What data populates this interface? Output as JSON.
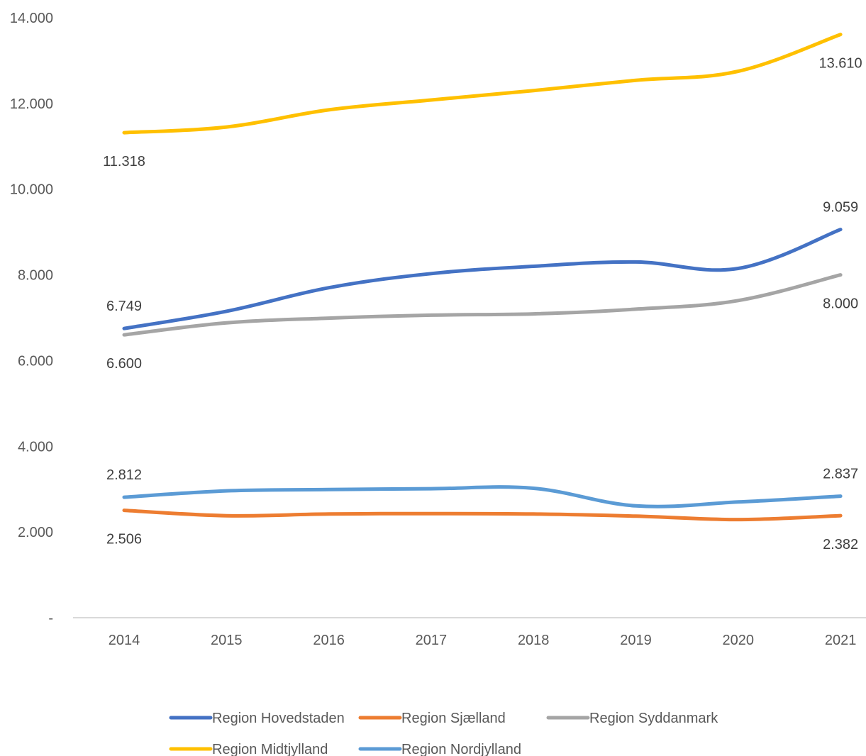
{
  "chart_data": {
    "type": "line",
    "title": "",
    "xlabel": "",
    "ylabel": "",
    "categories": [
      "2014",
      "2015",
      "2016",
      "2017",
      "2018",
      "2019",
      "2020",
      "2021"
    ],
    "ylim": [
      0,
      14000
    ],
    "y_ticks": [
      0,
      2000,
      4000,
      6000,
      8000,
      10000,
      12000,
      14000
    ],
    "y_tick_labels": [
      "-",
      "2.000",
      "4.000",
      "6.000",
      "8.000",
      "10.000",
      "12.000",
      "14.000"
    ],
    "grid": false,
    "smooth": true,
    "legend_position": "bottom",
    "series": [
      {
        "name": "Region Hovedstaden",
        "color": "#4472C4",
        "values": [
          6749,
          7150,
          7700,
          8030,
          8200,
          8300,
          8150,
          9059
        ],
        "labels": [
          {
            "index": 0,
            "text": "6.749",
            "pos": "above"
          },
          {
            "index": 7,
            "text": "9.059",
            "pos": "above"
          }
        ]
      },
      {
        "name": "Region Sjælland",
        "color": "#ED7D31",
        "values": [
          2506,
          2380,
          2420,
          2430,
          2420,
          2370,
          2290,
          2382
        ],
        "labels": [
          {
            "index": 0,
            "text": "2.506",
            "pos": "below"
          },
          {
            "index": 7,
            "text": "2.382",
            "pos": "below"
          }
        ]
      },
      {
        "name": "Region Syddanmark",
        "color": "#A5A5A5",
        "values": [
          6600,
          6880,
          6990,
          7060,
          7090,
          7200,
          7400,
          8000
        ],
        "labels": [
          {
            "index": 0,
            "text": "6.600",
            "pos": "below"
          },
          {
            "index": 7,
            "text": "8.000",
            "pos": "below"
          }
        ]
      },
      {
        "name": "Region Midtjylland",
        "color": "#FFC000",
        "values": [
          11318,
          11450,
          11850,
          12080,
          12300,
          12540,
          12750,
          13610
        ],
        "labels": [
          {
            "index": 0,
            "text": "11.318",
            "pos": "below"
          },
          {
            "index": 7,
            "text": "13.610",
            "pos": "below"
          }
        ]
      },
      {
        "name": "Region Nordjylland",
        "color": "#5B9BD5",
        "values": [
          2812,
          2960,
          2990,
          3010,
          3020,
          2610,
          2700,
          2837
        ],
        "labels": [
          {
            "index": 0,
            "text": "2.812",
            "pos": "above"
          },
          {
            "index": 7,
            "text": "2.837",
            "pos": "above"
          }
        ]
      }
    ]
  }
}
